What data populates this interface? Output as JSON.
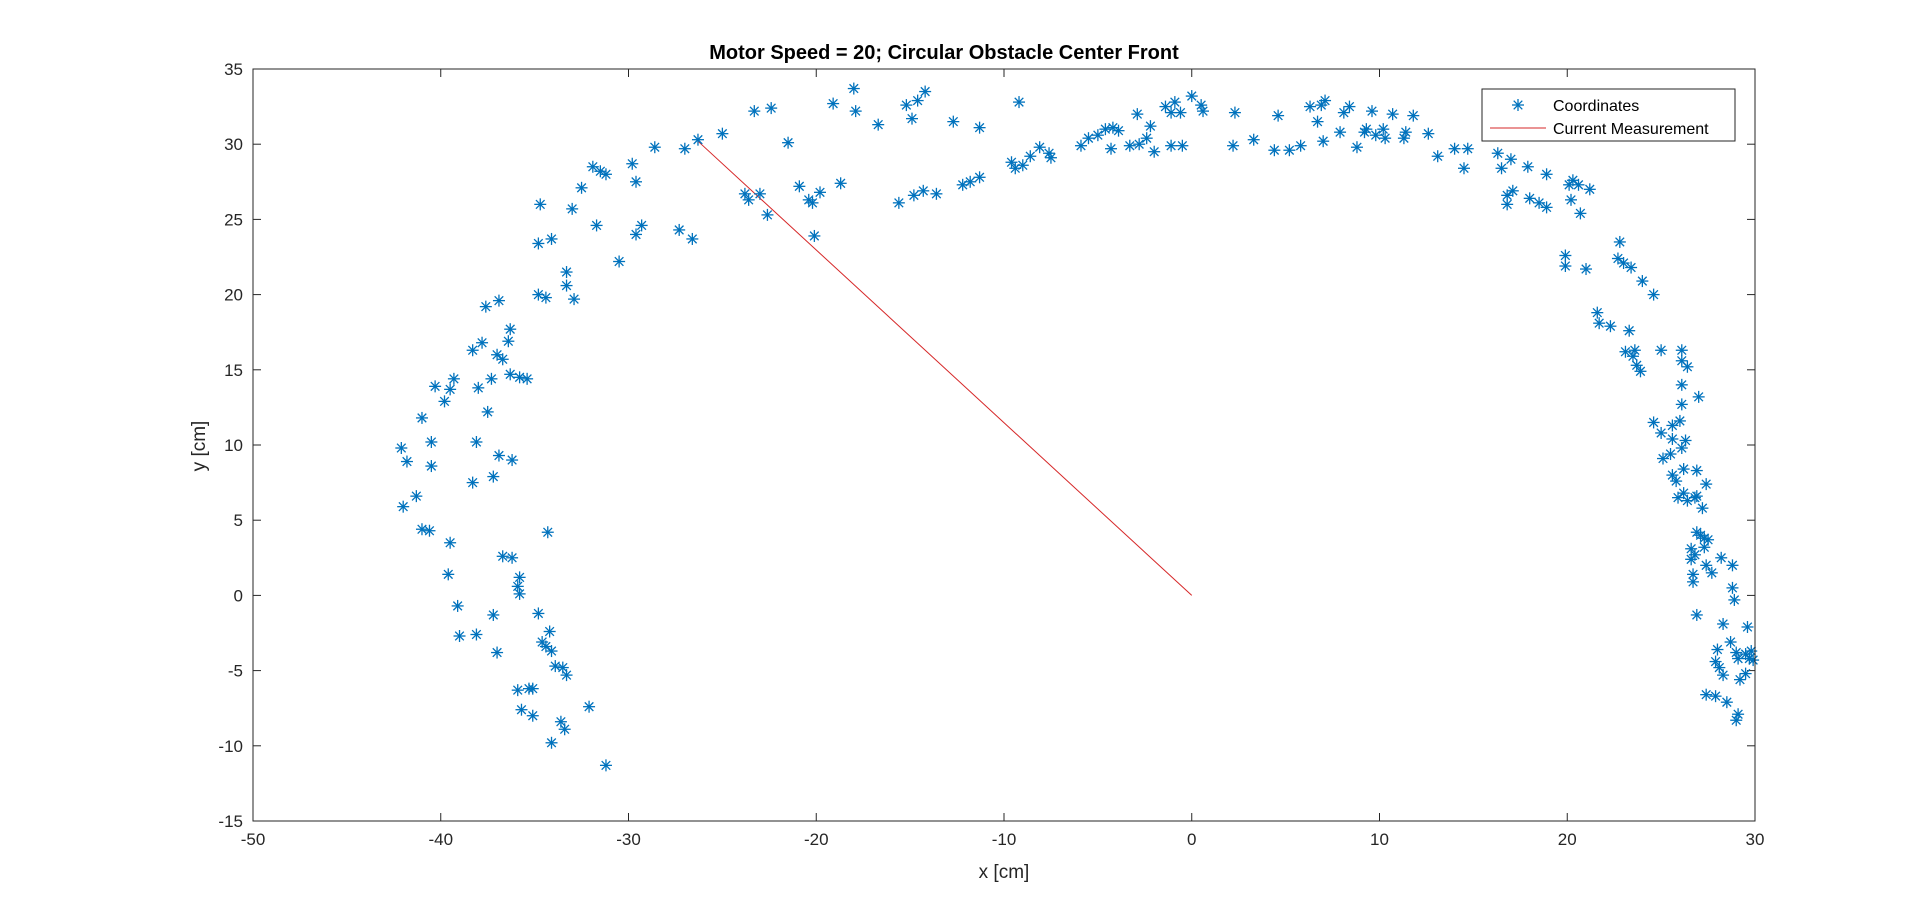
{
  "chart_data": {
    "type": "scatter",
    "title": "Motor Speed = 20; Circular Obstacle Center Front",
    "xlabel": "x [cm]",
    "ylabel": "y [cm]",
    "xlim": [
      -50,
      30
    ],
    "ylim": [
      -15,
      35
    ],
    "xticks": [
      -50,
      -40,
      -30,
      -20,
      -10,
      0,
      10,
      20,
      30
    ],
    "yticks": [
      -15,
      -10,
      -5,
      0,
      5,
      10,
      15,
      20,
      25,
      30,
      35
    ],
    "grid": false,
    "legend_position": "top-right",
    "series": [
      {
        "name": "Coordinates",
        "marker": "asterisk",
        "color": "#0072BD",
        "points": [
          [
            -42.1,
            9.8
          ],
          [
            -41.8,
            8.9
          ],
          [
            -41.3,
            6.6
          ],
          [
            -42.0,
            5.9
          ],
          [
            -41.0,
            4.4
          ],
          [
            -40.6,
            4.3
          ],
          [
            -41.0,
            11.8
          ],
          [
            -40.5,
            10.2
          ],
          [
            -40.5,
            8.6
          ],
          [
            -40.3,
            13.9
          ],
          [
            -39.8,
            12.9
          ],
          [
            -39.5,
            13.7
          ],
          [
            -39.3,
            14.4
          ],
          [
            -39.5,
            3.5
          ],
          [
            -39.6,
            1.4
          ],
          [
            -39.1,
            -0.7
          ],
          [
            -39.0,
            -2.7
          ],
          [
            -38.3,
            16.3
          ],
          [
            -37.8,
            16.8
          ],
          [
            -38.0,
            13.8
          ],
          [
            -37.3,
            14.4
          ],
          [
            -38.1,
            10.2
          ],
          [
            -38.3,
            7.5
          ],
          [
            -37.5,
            12.2
          ],
          [
            -37.6,
            19.2
          ],
          [
            -36.9,
            19.6
          ],
          [
            -37.0,
            16.0
          ],
          [
            -36.7,
            15.7
          ],
          [
            -36.3,
            17.7
          ],
          [
            -36.4,
            16.9
          ],
          [
            -36.3,
            14.7
          ],
          [
            -35.8,
            14.5
          ],
          [
            -35.4,
            14.4
          ],
          [
            -36.9,
            9.3
          ],
          [
            -37.2,
            7.9
          ],
          [
            -36.2,
            9.0
          ],
          [
            -37.2,
            -1.3
          ],
          [
            -38.1,
            -2.6
          ],
          [
            -37.0,
            -3.8
          ],
          [
            -36.7,
            2.6
          ],
          [
            -36.2,
            2.5
          ],
          [
            -35.8,
            1.2
          ],
          [
            -35.9,
            0.6
          ],
          [
            -35.8,
            0.1
          ],
          [
            -35.9,
            -6.3
          ],
          [
            -35.3,
            -6.2
          ],
          [
            -35.1,
            -6.2
          ],
          [
            -35.7,
            -7.6
          ],
          [
            -35.1,
            -8.0
          ],
          [
            -34.8,
            -1.2
          ],
          [
            -34.6,
            -3.1
          ],
          [
            -34.4,
            -3.4
          ],
          [
            -34.1,
            -3.7
          ],
          [
            -34.2,
            -2.4
          ],
          [
            -33.9,
            -4.7
          ],
          [
            -33.5,
            -4.8
          ],
          [
            -33.3,
            -5.3
          ],
          [
            -33.6,
            -8.4
          ],
          [
            -33.4,
            -8.9
          ],
          [
            -34.1,
            -9.8
          ],
          [
            -34.3,
            4.2
          ],
          [
            -34.7,
            26.0
          ],
          [
            -34.8,
            23.4
          ],
          [
            -34.1,
            23.7
          ],
          [
            -34.8,
            20.0
          ],
          [
            -34.4,
            19.8
          ],
          [
            -33.3,
            21.5
          ],
          [
            -33.3,
            20.6
          ],
          [
            -32.9,
            19.7
          ],
          [
            -33.0,
            25.7
          ],
          [
            -32.5,
            27.1
          ],
          [
            -31.9,
            28.5
          ],
          [
            -31.5,
            28.2
          ],
          [
            -31.7,
            24.6
          ],
          [
            -31.2,
            28.0
          ],
          [
            -30.5,
            22.2
          ],
          [
            -29.8,
            28.7
          ],
          [
            -29.6,
            27.5
          ],
          [
            -29.6,
            24.0
          ],
          [
            -29.3,
            24.6
          ],
          [
            -28.6,
            29.8
          ],
          [
            -32.1,
            -7.4
          ],
          [
            -31.2,
            -11.3
          ],
          [
            -27.3,
            24.3
          ],
          [
            -27.0,
            29.7
          ],
          [
            -26.6,
            23.7
          ],
          [
            -26.3,
            30.3
          ],
          [
            -25.0,
            30.7
          ],
          [
            -23.8,
            26.7
          ],
          [
            -23.6,
            26.3
          ],
          [
            -23.0,
            26.7
          ],
          [
            -23.3,
            32.2
          ],
          [
            -22.6,
            25.3
          ],
          [
            -22.4,
            32.4
          ],
          [
            -21.5,
            30.1
          ],
          [
            -20.9,
            27.2
          ],
          [
            -20.4,
            26.3
          ],
          [
            -20.2,
            26.1
          ],
          [
            -20.1,
            23.9
          ],
          [
            -19.8,
            26.8
          ],
          [
            -19.1,
            32.7
          ],
          [
            -18.7,
            27.4
          ],
          [
            -18.0,
            33.7
          ],
          [
            -17.9,
            32.2
          ],
          [
            -16.7,
            31.3
          ],
          [
            -15.6,
            26.1
          ],
          [
            -15.2,
            32.6
          ],
          [
            -14.9,
            31.7
          ],
          [
            -14.8,
            26.6
          ],
          [
            -14.6,
            32.9
          ],
          [
            -14.3,
            26.9
          ],
          [
            -14.2,
            33.5
          ],
          [
            -13.6,
            26.7
          ],
          [
            -12.7,
            31.5
          ],
          [
            -12.2,
            27.3
          ],
          [
            -11.8,
            27.5
          ],
          [
            -11.3,
            27.8
          ],
          [
            -11.3,
            31.1
          ],
          [
            -9.6,
            28.8
          ],
          [
            -9.4,
            28.4
          ],
          [
            -9.0,
            28.6
          ],
          [
            -9.2,
            32.8
          ],
          [
            -8.6,
            29.2
          ],
          [
            -8.1,
            29.8
          ],
          [
            -7.6,
            29.4
          ],
          [
            -7.5,
            29.1
          ],
          [
            -5.9,
            29.9
          ],
          [
            -5.5,
            30.4
          ],
          [
            -5.0,
            30.6
          ],
          [
            -4.6,
            31.0
          ],
          [
            -4.3,
            29.7
          ],
          [
            -4.2,
            31.1
          ],
          [
            -3.9,
            30.9
          ],
          [
            -3.3,
            29.9
          ],
          [
            -2.9,
            32.0
          ],
          [
            -2.8,
            30.0
          ],
          [
            -2.4,
            30.4
          ],
          [
            -2.2,
            31.2
          ],
          [
            -2.0,
            29.5
          ],
          [
            -1.4,
            32.5
          ],
          [
            -1.1,
            32.1
          ],
          [
            -1.1,
            29.9
          ],
          [
            -0.9,
            32.8
          ],
          [
            -0.6,
            32.1
          ],
          [
            -0.5,
            29.9
          ],
          [
            0.0,
            33.2
          ],
          [
            0.5,
            32.6
          ],
          [
            0.6,
            32.2
          ],
          [
            2.2,
            29.9
          ],
          [
            2.3,
            32.1
          ],
          [
            3.3,
            30.3
          ],
          [
            4.4,
            29.6
          ],
          [
            4.6,
            31.9
          ],
          [
            5.2,
            29.6
          ],
          [
            5.8,
            29.9
          ],
          [
            6.3,
            32.5
          ],
          [
            6.7,
            31.5
          ],
          [
            6.9,
            32.6
          ],
          [
            7.1,
            32.9
          ],
          [
            7.0,
            30.2
          ],
          [
            7.9,
            30.8
          ],
          [
            8.1,
            32.1
          ],
          [
            8.4,
            32.5
          ],
          [
            8.8,
            29.8
          ],
          [
            9.2,
            30.8
          ],
          [
            9.3,
            31.0
          ],
          [
            9.6,
            32.2
          ],
          [
            9.8,
            30.6
          ],
          [
            10.2,
            31.0
          ],
          [
            10.3,
            30.4
          ],
          [
            10.7,
            32.0
          ],
          [
            11.3,
            30.4
          ],
          [
            11.4,
            30.8
          ],
          [
            11.8,
            31.9
          ],
          [
            12.6,
            30.7
          ],
          [
            13.1,
            29.2
          ],
          [
            14.0,
            29.7
          ],
          [
            14.5,
            28.4
          ],
          [
            14.7,
            29.7
          ],
          [
            16.3,
            29.4
          ],
          [
            16.5,
            28.4
          ],
          [
            16.8,
            26.6
          ],
          [
            16.8,
            26.0
          ],
          [
            17.0,
            29.0
          ],
          [
            17.1,
            26.9
          ],
          [
            17.9,
            28.5
          ],
          [
            18.0,
            26.4
          ],
          [
            18.5,
            26.1
          ],
          [
            18.9,
            25.8
          ],
          [
            18.9,
            28.0
          ],
          [
            19.9,
            22.6
          ],
          [
            19.9,
            21.9
          ],
          [
            20.1,
            27.3
          ],
          [
            20.2,
            26.3
          ],
          [
            20.3,
            27.6
          ],
          [
            20.6,
            27.3
          ],
          [
            20.7,
            25.4
          ],
          [
            21.0,
            21.7
          ],
          [
            21.2,
            27.0
          ],
          [
            21.6,
            18.8
          ],
          [
            21.7,
            18.1
          ],
          [
            22.3,
            17.9
          ],
          [
            22.7,
            22.4
          ],
          [
            22.8,
            23.5
          ],
          [
            23.0,
            22.1
          ],
          [
            23.1,
            16.2
          ],
          [
            23.3,
            17.6
          ],
          [
            23.4,
            21.8
          ],
          [
            23.5,
            15.9
          ],
          [
            23.6,
            16.3
          ],
          [
            23.7,
            15.3
          ],
          [
            23.9,
            14.9
          ],
          [
            24.0,
            20.9
          ],
          [
            24.6,
            20.0
          ],
          [
            24.6,
            11.5
          ],
          [
            25.0,
            10.8
          ],
          [
            25.0,
            16.3
          ],
          [
            25.1,
            9.1
          ],
          [
            25.5,
            9.4
          ],
          [
            25.6,
            11.3
          ],
          [
            25.6,
            10.4
          ],
          [
            25.6,
            8.0
          ],
          [
            25.8,
            7.6
          ],
          [
            25.9,
            6.5
          ],
          [
            26.0,
            11.6
          ],
          [
            26.1,
            9.8
          ],
          [
            26.1,
            14.0
          ],
          [
            26.1,
            12.7
          ],
          [
            26.1,
            16.3
          ],
          [
            26.1,
            15.6
          ],
          [
            26.2,
            8.4
          ],
          [
            26.2,
            6.8
          ],
          [
            26.3,
            10.3
          ],
          [
            26.4,
            15.2
          ],
          [
            26.4,
            6.3
          ],
          [
            26.6,
            3.1
          ],
          [
            26.6,
            2.4
          ],
          [
            26.7,
            1.4
          ],
          [
            26.7,
            0.9
          ],
          [
            26.8,
            2.7
          ],
          [
            26.8,
            6.5
          ],
          [
            26.9,
            -1.3
          ],
          [
            26.9,
            8.3
          ],
          [
            26.9,
            6.6
          ],
          [
            26.9,
            4.2
          ],
          [
            27.0,
            13.2
          ],
          [
            27.1,
            4.0
          ],
          [
            27.2,
            5.8
          ],
          [
            27.3,
            3.2
          ],
          [
            27.3,
            3.8
          ],
          [
            27.4,
            2.0
          ],
          [
            27.4,
            7.4
          ],
          [
            27.5,
            3.7
          ],
          [
            27.7,
            1.5
          ],
          [
            27.9,
            -4.4
          ],
          [
            27.9,
            -6.7
          ],
          [
            28.0,
            -3.6
          ],
          [
            28.1,
            -4.8
          ],
          [
            28.2,
            2.5
          ],
          [
            28.3,
            -1.9
          ],
          [
            28.3,
            -5.3
          ],
          [
            28.5,
            -7.1
          ],
          [
            28.7,
            -3.1
          ],
          [
            28.8,
            0.5
          ],
          [
            28.8,
            2.0
          ],
          [
            28.9,
            -0.3
          ],
          [
            29.0,
            -3.8
          ],
          [
            29.0,
            -8.3
          ],
          [
            29.1,
            -4.2
          ],
          [
            29.2,
            -5.6
          ],
          [
            29.1,
            -7.9
          ],
          [
            29.5,
            -5.2
          ],
          [
            29.5,
            -3.9
          ],
          [
            29.6,
            -2.1
          ],
          [
            29.7,
            -4.2
          ],
          [
            29.8,
            -3.7
          ],
          [
            29.9,
            -4.3
          ],
          [
            27.4,
            -6.6
          ]
        ]
      },
      {
        "name": "Current Measurement",
        "color": "#D62728",
        "points": [
          [
            0,
            0
          ],
          [
            -26.3,
            30.2
          ]
        ]
      }
    ]
  }
}
